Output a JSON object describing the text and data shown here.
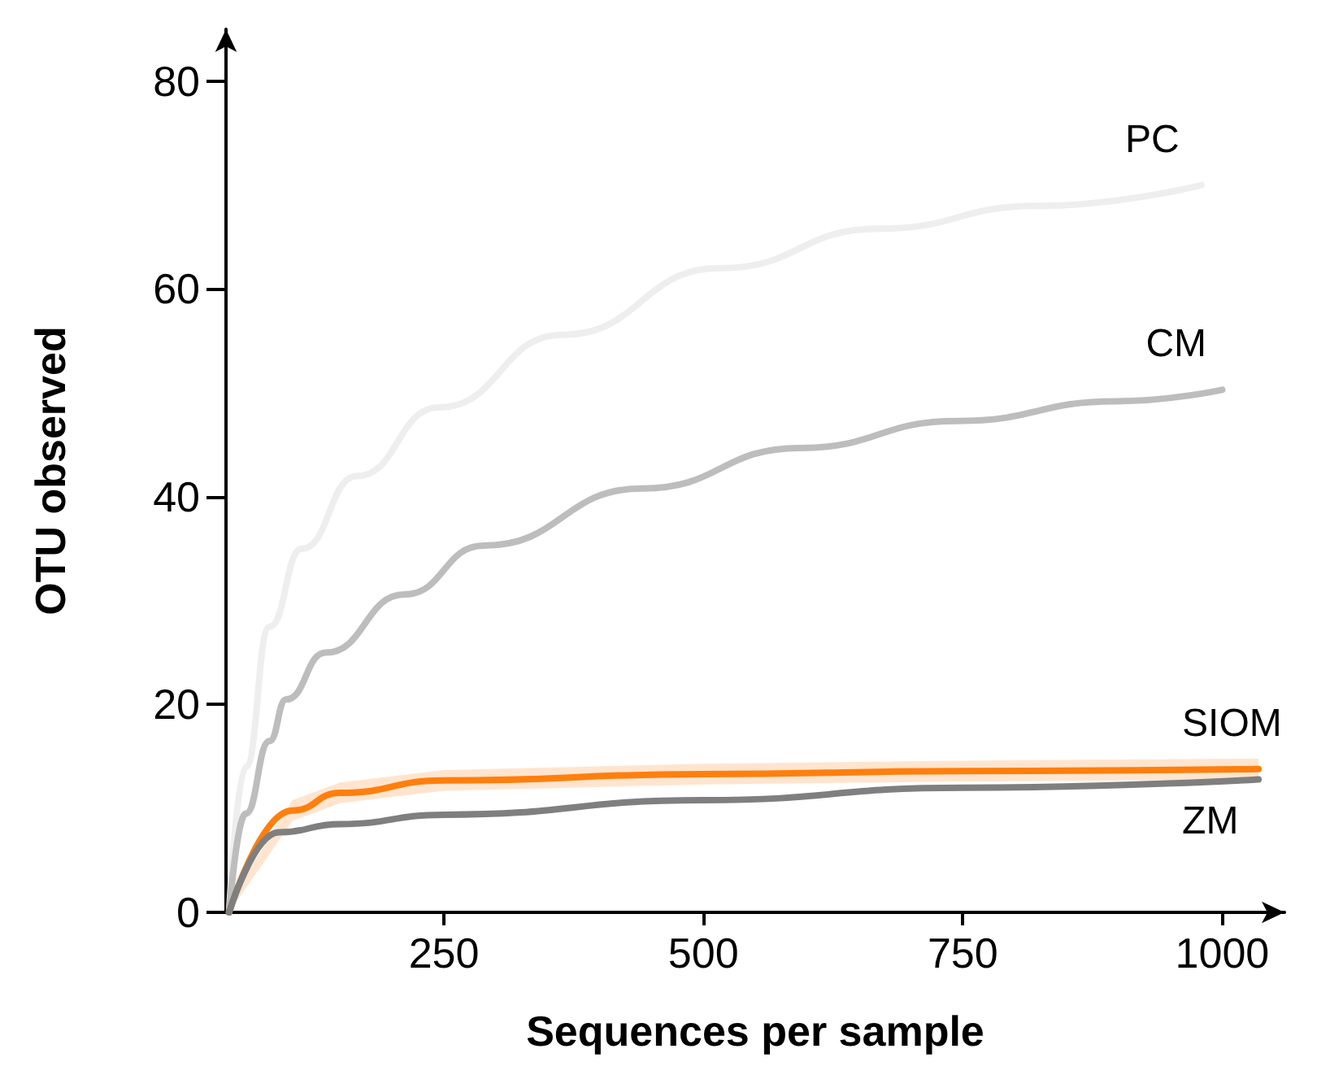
{
  "chart_data": {
    "type": "line",
    "xlabel": "Sequences per sample",
    "ylabel": "OTU observed",
    "xlim": [
      40,
      1060
    ],
    "ylim": [
      0,
      85
    ],
    "xticks": [
      250,
      500,
      750,
      1000
    ],
    "yticks": [
      0,
      20,
      40,
      60,
      80
    ],
    "grid": false,
    "legend": false,
    "marker": "none",
    "line_style": "solid",
    "series": [
      {
        "name": "PC",
        "color": "#eeeeee",
        "x": [
          43,
          59,
          82,
          113,
          166,
          245,
          364,
          516,
          669,
          822,
          980
        ],
        "values": [
          0,
          14,
          27.5,
          35,
          42,
          48.6,
          55.6,
          62,
          65.8,
          68,
          70
        ]
      },
      {
        "name": "CM",
        "color": "#bdbdbd",
        "x": [
          43,
          59,
          82,
          98,
          136,
          212,
          288,
          441,
          593,
          745,
          898,
          1000
        ],
        "values": [
          0,
          9.5,
          16.5,
          20.5,
          25,
          30.6,
          35.3,
          40.8,
          44.7,
          47.3,
          49.2,
          50.3
        ]
      },
      {
        "name": "SIOM",
        "color": "#ff7f0e",
        "x": [
          43,
          104,
          150,
          250,
          500,
          750,
          1035
        ],
        "values": [
          0,
          9.8,
          11.5,
          12.7,
          13.3,
          13.6,
          13.8
        ],
        "lower": [
          0,
          8.8,
          10.5,
          11.7,
          12.3,
          12.6,
          12.8
        ],
        "upper": [
          1,
          10.8,
          12.5,
          13.7,
          14.3,
          14.6,
          14.8
        ]
      },
      {
        "name": "ZM",
        "color": "#7f7f7f",
        "x": [
          43,
          91,
          150,
          250,
          500,
          750,
          1035
        ],
        "values": [
          0,
          7.7,
          8.5,
          9.4,
          10.8,
          12.0,
          12.8
        ]
      }
    ]
  }
}
